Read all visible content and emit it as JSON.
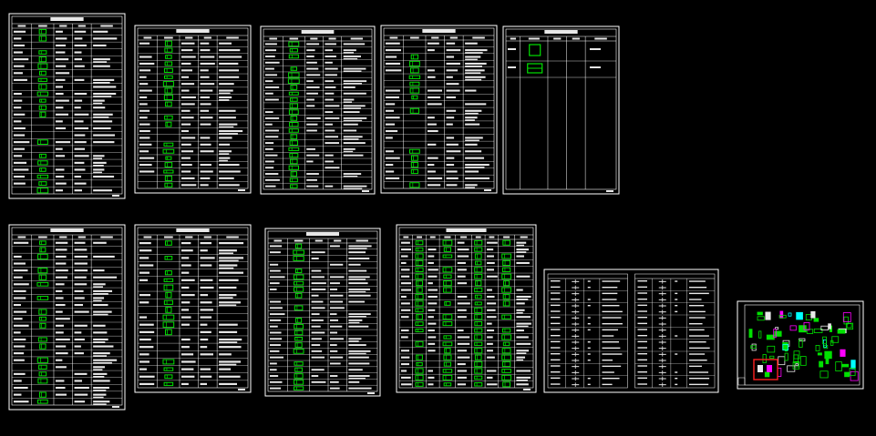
{
  "viewport": {
    "background": "#000000"
  },
  "colors": {
    "frame": "#ffffff",
    "line": "#ffffff",
    "text_block": "#e8e8e8",
    "detail": "#00e000",
    "accent_magenta": "#ff00ff",
    "accent_red": "#ff2020",
    "accent_cyan": "#00ffff"
  },
  "sheets": [
    {
      "kind": "table",
      "rows": 24,
      "cols": 5,
      "detail_col": 1,
      "detail_density": 0.85
    },
    {
      "kind": "table",
      "rows": 22,
      "cols": 5,
      "detail_col": 1,
      "detail_density": 0.7
    },
    {
      "kind": "table",
      "rows": 24,
      "cols": 5,
      "detail_col": 1,
      "detail_density": 0.9
    },
    {
      "kind": "table",
      "rows": 22,
      "cols": 5,
      "detail_col": 1,
      "detail_density": 0.6
    },
    {
      "kind": "sparse",
      "rows": 3,
      "cols": 5,
      "detail_col": 1,
      "detail_density": 1.0
    },
    {
      "kind": "table",
      "rows": 24,
      "cols": 5,
      "detail_col": 1,
      "detail_density": 0.8
    },
    {
      "kind": "table",
      "rows": 20,
      "cols": 5,
      "detail_col": 1,
      "detail_density": 0.75
    },
    {
      "kind": "table",
      "rows": 24,
      "cols": 5,
      "detail_col": 1,
      "detail_density": 0.8
    },
    {
      "kind": "wide",
      "rows": 22,
      "cols": 9,
      "detail_col": 1,
      "detail_density": 0.9
    },
    {
      "kind": "legend",
      "rows": 18,
      "cols": 8,
      "detail_col": 1,
      "detail_density": 0.0
    },
    {
      "kind": "plan",
      "rows": 0,
      "cols": 0,
      "detail_col": 0,
      "detail_density": 0.0
    }
  ]
}
